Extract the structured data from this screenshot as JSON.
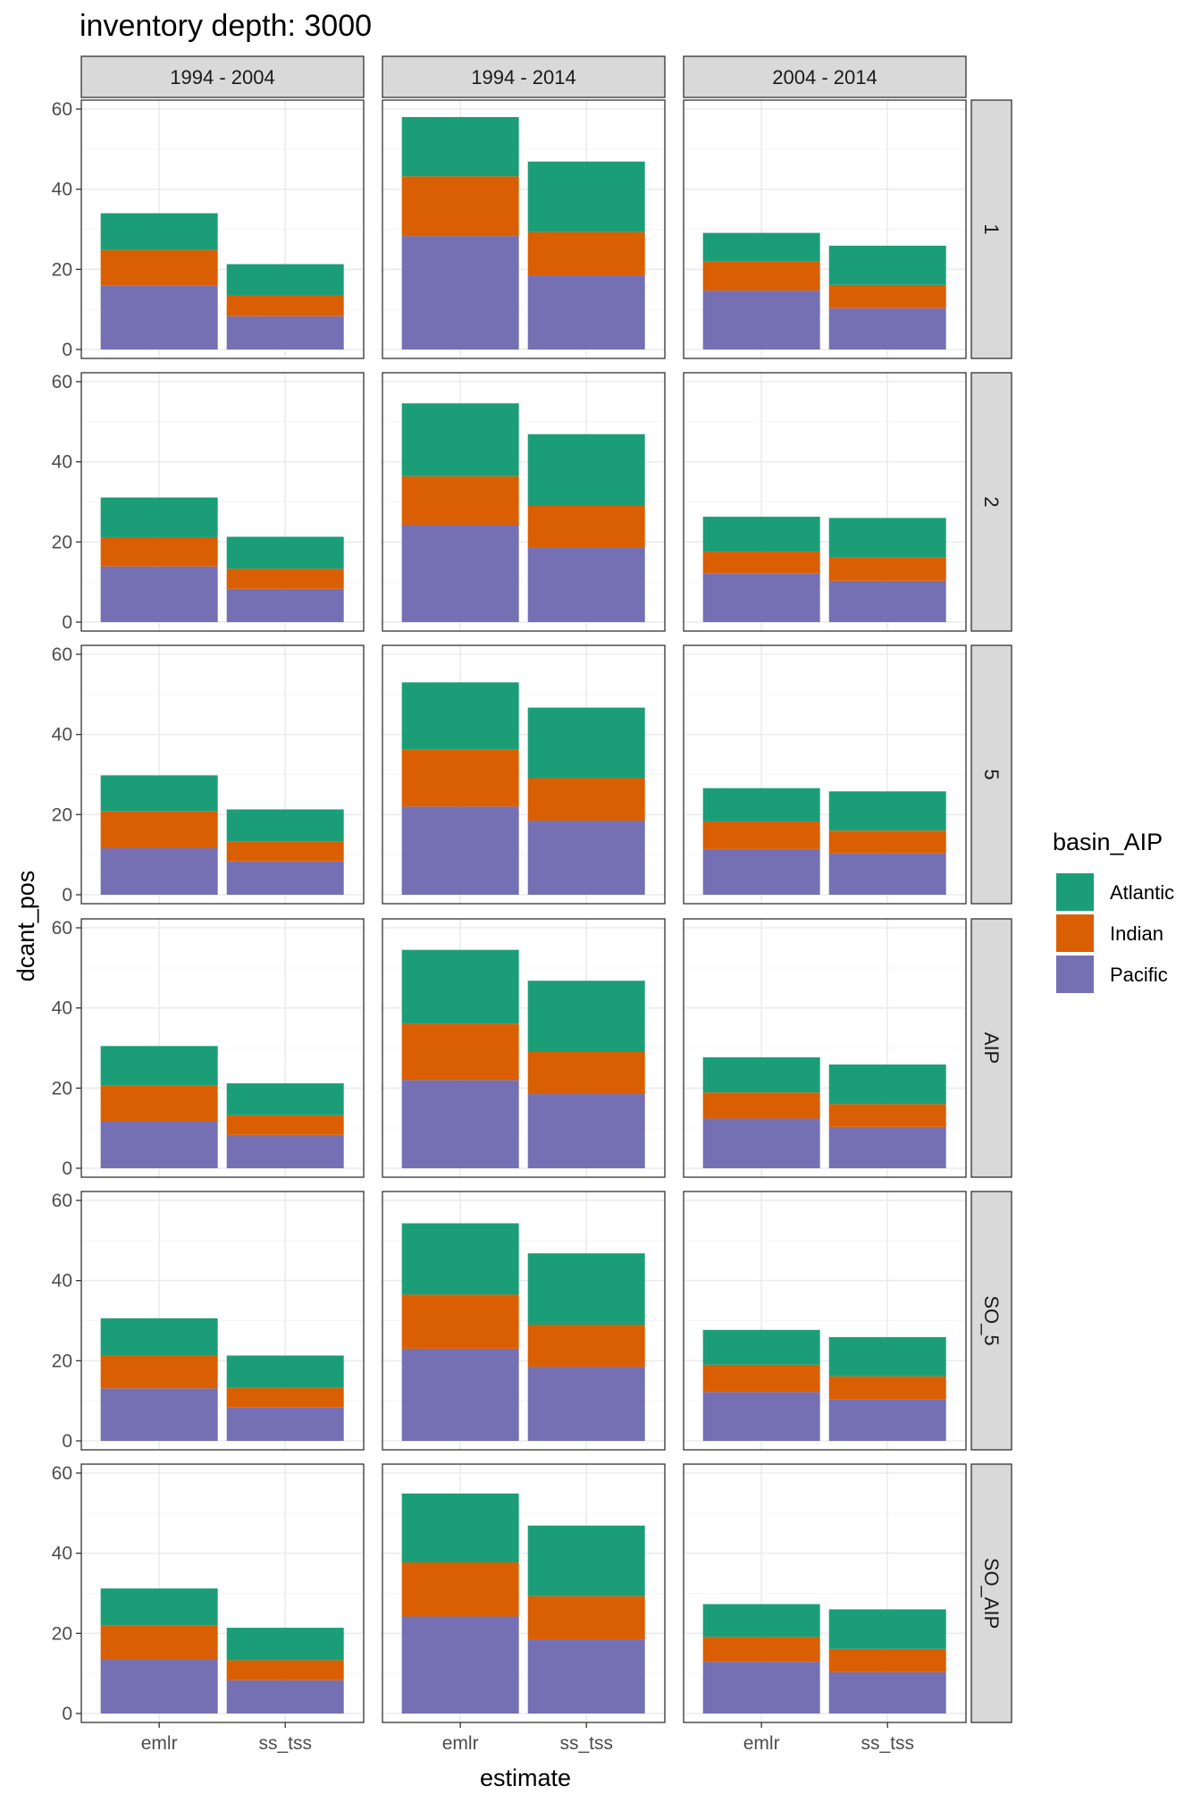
{
  "chart_data": {
    "type": "bar",
    "stacked": true,
    "title": "inventory depth: 3000",
    "xlabel": "estimate",
    "ylabel": "dcant_pos",
    "ylim": [
      0,
      60
    ],
    "yticks": [
      0,
      20,
      40,
      60
    ],
    "grid": true,
    "categories": [
      "emlr",
      "ss_tss"
    ],
    "col_facets": [
      "1994 - 2004",
      "1994 - 2014",
      "2004 - 2014"
    ],
    "row_facets": [
      "1",
      "2",
      "5",
      "AIP",
      "SO_5",
      "SO_AIP"
    ],
    "legend": {
      "title": "basin_AIP",
      "position": "right",
      "entries": [
        {
          "name": "Atlantic",
          "color": "#1b9e77"
        },
        {
          "name": "Indian",
          "color": "#d95f02"
        },
        {
          "name": "Pacific",
          "color": "#7570b3"
        }
      ]
    },
    "stack_order": [
      "Pacific",
      "Indian",
      "Atlantic"
    ],
    "panels": [
      {
        "row": "1",
        "col": "1994 - 2004",
        "emlr": {
          "Pacific": 16,
          "Indian": 8.8,
          "Atlantic": 9.2
        },
        "ss_tss": {
          "Pacific": 8.3,
          "Indian": 5.1,
          "Atlantic": 7.9
        }
      },
      {
        "row": "1",
        "col": "1994 - 2014",
        "emlr": {
          "Pacific": 28.3,
          "Indian": 14.9,
          "Atlantic": 14.8
        },
        "ss_tss": {
          "Pacific": 18.5,
          "Indian": 10.8,
          "Atlantic": 17.6
        }
      },
      {
        "row": "1",
        "col": "2004 - 2014",
        "emlr": {
          "Pacific": 14.7,
          "Indian": 7.2,
          "Atlantic": 7.2
        },
        "ss_tss": {
          "Pacific": 10.3,
          "Indian": 5.8,
          "Atlantic": 9.8
        }
      },
      {
        "row": "2",
        "col": "1994 - 2004",
        "emlr": {
          "Pacific": 13.9,
          "Indian": 7.3,
          "Atlantic": 9.9
        },
        "ss_tss": {
          "Pacific": 8.3,
          "Indian": 5.0,
          "Atlantic": 8.0
        }
      },
      {
        "row": "2",
        "col": "1994 - 2014",
        "emlr": {
          "Pacific": 24.2,
          "Indian": 12.2,
          "Atlantic": 18.2
        },
        "ss_tss": {
          "Pacific": 18.5,
          "Indian": 10.5,
          "Atlantic": 17.9
        }
      },
      {
        "row": "2",
        "col": "2004 - 2014",
        "emlr": {
          "Pacific": 12.1,
          "Indian": 5.5,
          "Atlantic": 8.7
        },
        "ss_tss": {
          "Pacific": 10.3,
          "Indian": 5.8,
          "Atlantic": 9.9
        }
      },
      {
        "row": "5",
        "col": "1994 - 2004",
        "emlr": {
          "Pacific": 11.6,
          "Indian": 9.2,
          "Atlantic": 9.0
        },
        "ss_tss": {
          "Pacific": 8.3,
          "Indian": 4.9,
          "Atlantic": 8.1
        }
      },
      {
        "row": "5",
        "col": "1994 - 2014",
        "emlr": {
          "Pacific": 22.0,
          "Indian": 14.2,
          "Atlantic": 16.8
        },
        "ss_tss": {
          "Pacific": 18.5,
          "Indian": 10.6,
          "Atlantic": 17.6
        }
      },
      {
        "row": "5",
        "col": "2004 - 2014",
        "emlr": {
          "Pacific": 11.4,
          "Indian": 6.9,
          "Atlantic": 8.3
        },
        "ss_tss": {
          "Pacific": 10.3,
          "Indian": 5.7,
          "Atlantic": 9.8
        }
      },
      {
        "row": "AIP",
        "col": "1994 - 2004",
        "emlr": {
          "Pacific": 11.6,
          "Indian": 9.0,
          "Atlantic": 9.9
        },
        "ss_tss": {
          "Pacific": 8.3,
          "Indian": 4.9,
          "Atlantic": 8.0
        }
      },
      {
        "row": "AIP",
        "col": "1994 - 2014",
        "emlr": {
          "Pacific": 22.0,
          "Indian": 14.1,
          "Atlantic": 18.4
        },
        "ss_tss": {
          "Pacific": 18.5,
          "Indian": 10.5,
          "Atlantic": 17.8
        }
      },
      {
        "row": "AIP",
        "col": "2004 - 2014",
        "emlr": {
          "Pacific": 12.4,
          "Indian": 6.5,
          "Atlantic": 8.8
        },
        "ss_tss": {
          "Pacific": 10.3,
          "Indian": 5.7,
          "Atlantic": 9.9
        }
      },
      {
        "row": "SO_5",
        "col": "1994 - 2004",
        "emlr": {
          "Pacific": 13.1,
          "Indian": 8.2,
          "Atlantic": 9.3
        },
        "ss_tss": {
          "Pacific": 8.3,
          "Indian": 4.9,
          "Atlantic": 8.1
        }
      },
      {
        "row": "SO_5",
        "col": "1994 - 2014",
        "emlr": {
          "Pacific": 23.0,
          "Indian": 13.5,
          "Atlantic": 17.8
        },
        "ss_tss": {
          "Pacific": 18.5,
          "Indian": 10.5,
          "Atlantic": 17.8
        }
      },
      {
        "row": "SO_5",
        "col": "2004 - 2014",
        "emlr": {
          "Pacific": 12.2,
          "Indian": 6.8,
          "Atlantic": 8.7
        },
        "ss_tss": {
          "Pacific": 10.3,
          "Indian": 5.8,
          "Atlantic": 9.8
        }
      },
      {
        "row": "SO_AIP",
        "col": "1994 - 2004",
        "emlr": {
          "Pacific": 13.6,
          "Indian": 8.4,
          "Atlantic": 9.2
        },
        "ss_tss": {
          "Pacific": 8.3,
          "Indian": 5.0,
          "Atlantic": 8.1
        }
      },
      {
        "row": "SO_AIP",
        "col": "1994 - 2014",
        "emlr": {
          "Pacific": 24.2,
          "Indian": 13.5,
          "Atlantic": 17.2
        },
        "ss_tss": {
          "Pacific": 18.5,
          "Indian": 10.8,
          "Atlantic": 17.6
        }
      },
      {
        "row": "SO_AIP",
        "col": "2004 - 2014",
        "emlr": {
          "Pacific": 12.9,
          "Indian": 6.2,
          "Atlantic": 8.2
        },
        "ss_tss": {
          "Pacific": 10.3,
          "Indian": 5.8,
          "Atlantic": 9.9
        }
      }
    ]
  }
}
